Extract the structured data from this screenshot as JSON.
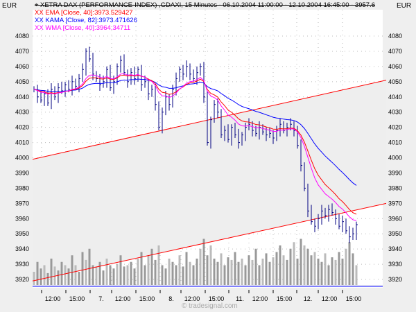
{
  "chart_data": {
    "type": "ohlc",
    "title": "XETRA DAX (PERFORMANCE-INDEX) ,GDAXI, 15 Minutes - 06.10.2004 11:00:00 - 12.10.2004 16:45:00 - 3957.6",
    "currency_left": "EUR",
    "currency_right": "EUR",
    "legend": [
      {
        "label": "EMA [Close, 40]:3973.529427",
        "color": "#ff0000"
      },
      {
        "label": "KAMA [Close, 82]:3973.471626",
        "color": "#0000ff"
      },
      {
        "label": "WMA [Close, 40]:3964.34711",
        "color": "#ff00ff"
      }
    ],
    "ylim": [
      3915,
      4090
    ],
    "yticks": [
      3920,
      3930,
      3940,
      3950,
      3960,
      3970,
      3980,
      3990,
      4000,
      4010,
      4020,
      4030,
      4040,
      4050,
      4060,
      4070,
      4080
    ],
    "xticks": [
      "12:00",
      "15:00",
      "7.",
      "12:00",
      "15:00",
      "8.",
      "12:00",
      "15:00",
      "11.",
      "12:00",
      "15:00",
      "12.",
      "12:00",
      "15:00"
    ],
    "closes": [
      4045,
      4040,
      4038,
      4042,
      4036,
      4045,
      4040,
      4046,
      4044,
      4048,
      4045,
      4050,
      4047,
      4052,
      4058,
      4070,
      4065,
      4055,
      4052,
      4048,
      4050,
      4058,
      4046,
      4050,
      4060,
      4064,
      4056,
      4050,
      4056,
      4052,
      4058,
      4048,
      4050,
      4042,
      4045,
      4035,
      4020,
      4030,
      4040,
      4035,
      4045,
      4052,
      4058,
      4055,
      4060,
      4055,
      4052,
      4056,
      4060,
      4040,
      4010,
      4025,
      4035,
      4030,
      4015,
      4018,
      4012,
      4020,
      4015,
      4010,
      4015,
      4020,
      4022,
      4018,
      4016,
      4020,
      4017,
      4015,
      4016,
      4013,
      4018,
      4022,
      4018,
      4020,
      4022,
      4018,
      4008,
      3995,
      3980,
      3965,
      3958,
      3955,
      3960,
      3965,
      3962,
      3966,
      3964,
      3960,
      3955,
      3958,
      3952,
      3948,
      3950,
      3956
    ],
    "volumes": [
      20,
      35,
      25,
      30,
      18,
      40,
      28,
      22,
      35,
      30,
      25,
      45,
      30,
      20,
      50,
      38,
      55,
      30,
      28,
      35,
      22,
      40,
      30,
      25,
      32,
      45,
      28,
      30,
      35,
      25,
      40,
      50,
      30,
      45,
      55,
      38,
      60,
      30,
      25,
      40,
      35,
      30,
      45,
      28,
      50,
      35,
      30,
      40,
      55,
      70,
      45,
      60,
      40,
      35,
      48,
      30,
      42,
      38,
      50,
      35,
      40,
      30,
      45,
      38,
      55,
      30,
      40,
      48,
      35,
      42,
      50,
      60,
      45,
      38,
      55,
      65,
      40,
      70,
      60,
      55,
      45,
      50,
      40,
      35,
      48,
      30,
      42,
      38,
      50,
      40,
      55,
      65,
      48,
      30
    ],
    "channel": {
      "upper": [
        3999,
        4051
      ],
      "lower": [
        3919,
        3970
      ]
    },
    "watermark": "© tradesignal.com"
  }
}
